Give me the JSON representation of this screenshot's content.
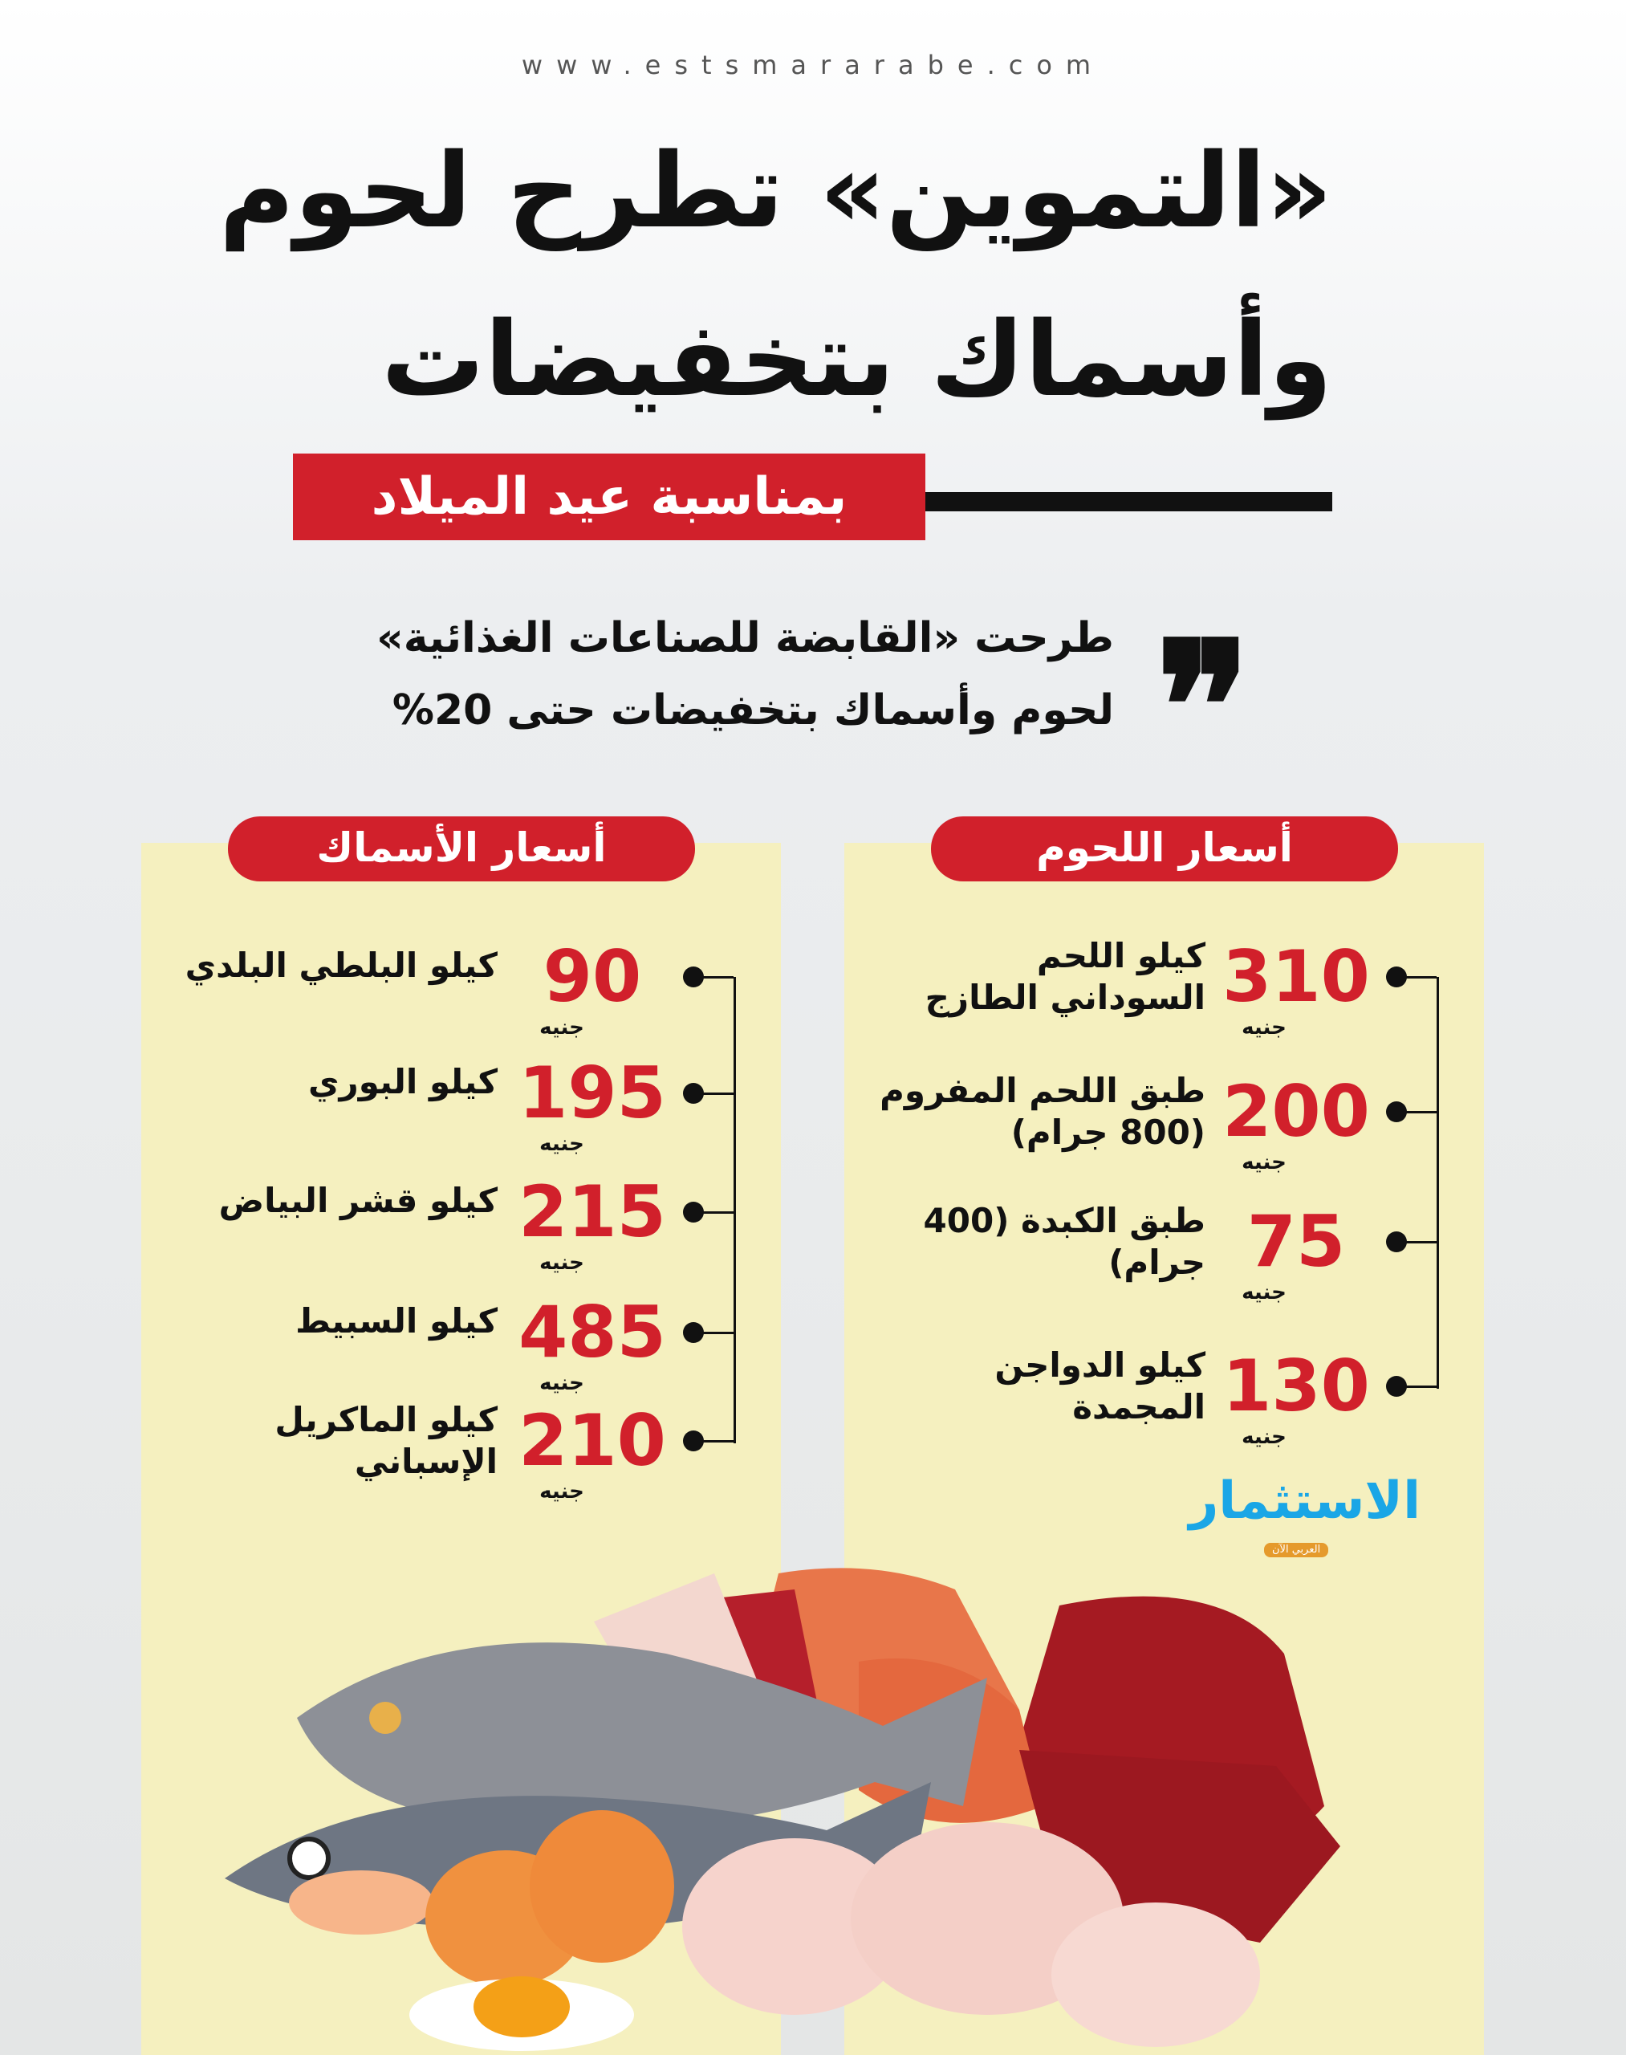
{
  "website": "www.estsmararabe.com",
  "headline": {
    "line1": "«التموين» تطرح لحوم",
    "line2": "وأسماك بتخفيضات",
    "occasion_banner": "بمناسبة عيد الميلاد"
  },
  "quote": {
    "line1": "طرحت «القابضة للصناعات الغذائية»",
    "line2": "لحوم وأسماك بتخفيضات حتى 20%"
  },
  "meat_prices": {
    "title": "أسعار اللحوم",
    "items": [
      {
        "name_line1": "كيلو اللحم",
        "name_line2": "السوداني الطازج",
        "price": "310",
        "unit": "جنيه"
      },
      {
        "name_line1": "طبق اللحم المفروم",
        "name_line2": "(800 جرام)",
        "price": "200",
        "unit": "جنيه"
      },
      {
        "name_line1": "طبق الكبدة (400",
        "name_line2": "جرام)",
        "price": "75",
        "unit": "جنيه"
      },
      {
        "name_line1": "كيلو الدواجن",
        "name_line2": "المجمدة",
        "price": "130",
        "unit": "جنيه"
      }
    ]
  },
  "fish_prices": {
    "title": "أسعار الأسماك",
    "items": [
      {
        "name_line1": "كيلو البلطي البلدي",
        "name_line2": "",
        "price": "90",
        "unit": "جنيه"
      },
      {
        "name_line1": "كيلو البوري",
        "name_line2": "",
        "price": "195",
        "unit": "جنيه"
      },
      {
        "name_line1": "كيلو قشر البياض",
        "name_line2": "",
        "price": "215",
        "unit": "جنيه"
      },
      {
        "name_line1": "كيلو السبيط",
        "name_line2": "",
        "price": "485",
        "unit": "جنيه"
      },
      {
        "name_line1": "كيلو الماكريل",
        "name_line2": "الإسباني",
        "price": "210",
        "unit": "جنيه"
      }
    ]
  },
  "logo": {
    "name": "الاستثمار",
    "tagline": "العربي الآن"
  },
  "colors": {
    "accent_red": "#d1202b",
    "panel_yellow": "#f5f0bf",
    "logo_blue": "#1aa6e6",
    "logo_orange": "#e59a2c"
  }
}
